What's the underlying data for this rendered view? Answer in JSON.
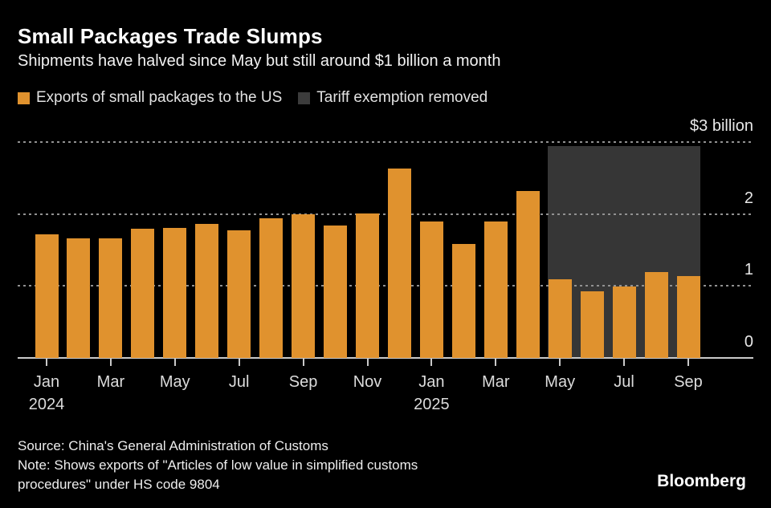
{
  "title": "Small Packages Trade Slumps",
  "subtitle": "Shipments have halved since May but still around $1 billion a month",
  "legend": [
    {
      "label": "Exports of small packages to the US",
      "color": "#E0922E"
    },
    {
      "label": "Tariff exemption removed",
      "color": "#3C3C3C"
    }
  ],
  "chart_data": {
    "type": "bar",
    "title": "Small Packages Trade Slumps",
    "unit": "$ billion",
    "bar_color": "#E0922E",
    "grid": "dotted-horizontal",
    "ylim": [
      0,
      3
    ],
    "x": [
      "Jan 2024",
      "Feb 2024",
      "Mar 2024",
      "Apr 2024",
      "May 2024",
      "Jun 2024",
      "Jul 2024",
      "Aug 2024",
      "Sep 2024",
      "Oct 2024",
      "Nov 2024",
      "Dec 2024",
      "Jan 2025",
      "Feb 2025",
      "Mar 2025",
      "Apr 2025",
      "May 2025",
      "Jun 2025",
      "Jul 2025",
      "Aug 2025",
      "Sep 2025"
    ],
    "values": [
      1.72,
      1.66,
      1.66,
      1.79,
      1.81,
      1.86,
      1.77,
      1.94,
      2.0,
      1.84,
      2.01,
      2.63,
      1.9,
      1.58,
      1.9,
      2.32,
      1.09,
      0.93,
      0.99,
      1.19,
      1.14
    ],
    "yticks": [
      {
        "value": 3,
        "label": "$3 billion"
      },
      {
        "value": 2,
        "label": "2"
      },
      {
        "value": 1,
        "label": "1"
      },
      {
        "value": 0,
        "label": "0"
      }
    ],
    "xticks": [
      {
        "index": 0,
        "label": "Jan",
        "sublabel": "2024"
      },
      {
        "index": 2,
        "label": "Mar"
      },
      {
        "index": 4,
        "label": "May"
      },
      {
        "index": 6,
        "label": "Jul"
      },
      {
        "index": 8,
        "label": "Sep"
      },
      {
        "index": 10,
        "label": "Nov"
      },
      {
        "index": 12,
        "label": "Jan",
        "sublabel": "2025"
      },
      {
        "index": 14,
        "label": "Mar"
      },
      {
        "index": 16,
        "label": "May"
      },
      {
        "index": 18,
        "label": "Jul"
      },
      {
        "index": 20,
        "label": "Sep"
      }
    ],
    "highlight_region": {
      "label": "Tariff exemption removed",
      "from": "May 2025",
      "to": "Sep 2025",
      "start_index": 16,
      "end_index": 20,
      "color": "#363636"
    }
  },
  "footer": {
    "source": "Source: China's General Administration of Customs",
    "note_line1": "Note: Shows exports of \"Articles of low value in simplified customs",
    "note_line2": "procedures\" under HS code 9804",
    "brand": "Bloomberg"
  }
}
